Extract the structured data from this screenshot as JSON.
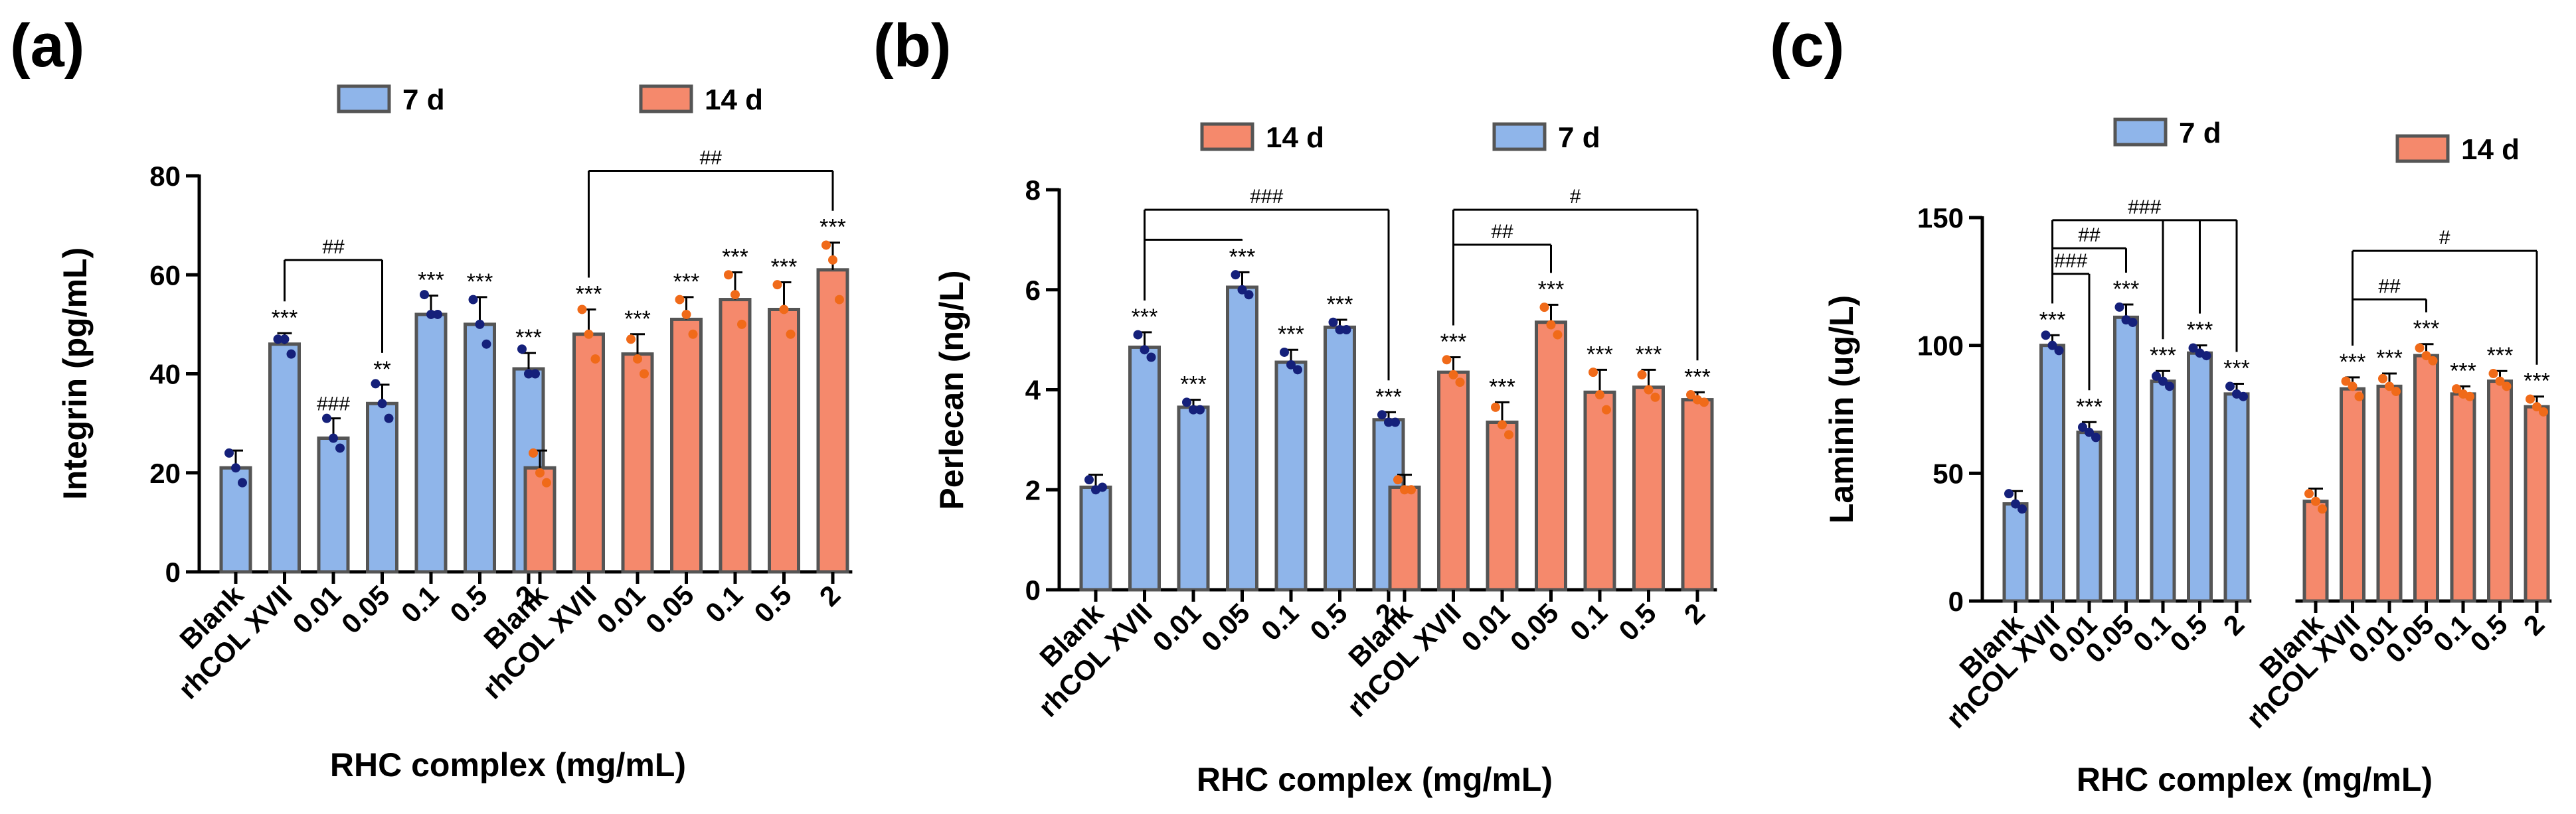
{
  "colors": {
    "d7": "#8fb5ea",
    "d14": "#f5896c",
    "dot7": "#15207a",
    "dot14": "#f06a19",
    "border": "#555555"
  },
  "chart_data": [
    {
      "type": "bar",
      "panel": "(a)",
      "ylabel": "Integrin (pg/mL)",
      "xlabel": "RHC complex (mg/mL)",
      "ylim": [
        0,
        80
      ],
      "yticks": [
        0,
        20,
        40,
        60,
        80
      ],
      "categories": [
        "Blank",
        "rhCOL XVII",
        "0.01",
        "0.05",
        "0.1",
        "0.5",
        "2"
      ],
      "legend": [
        "7 d",
        "14 d"
      ],
      "legend_order": [
        "d7",
        "d14"
      ],
      "series": [
        {
          "name": "7 d",
          "color_key": "d7",
          "values": [
            21,
            46,
            27,
            34,
            52,
            50,
            41
          ],
          "err": [
            3.5,
            2.2,
            4,
            3.8,
            3.8,
            5.5,
            3.2
          ],
          "points": [
            [
              24,
              21,
              18
            ],
            [
              47,
              47,
              44
            ],
            [
              31,
              27,
              25
            ],
            [
              38,
              34,
              31
            ],
            [
              56,
              52,
              52
            ],
            [
              55,
              50,
              46
            ],
            [
              45,
              40,
              40
            ]
          ],
          "sig": [
            "",
            "***",
            "###",
            "**",
            "***",
            "***",
            "***"
          ]
        },
        {
          "name": "14 d",
          "color_key": "d14",
          "values": [
            21,
            48,
            44,
            51,
            55,
            53,
            61
          ],
          "err": [
            3.5,
            5,
            4,
            4.5,
            5.5,
            5.5,
            5.5
          ],
          "points": [
            [
              24,
              20,
              18
            ],
            [
              53,
              48,
              43
            ],
            [
              47,
              43,
              40
            ],
            [
              55,
              52,
              48
            ],
            [
              60,
              56,
              50
            ],
            [
              58,
              53,
              48
            ],
            [
              66,
              63,
              55
            ]
          ],
          "sig": [
            "",
            "***",
            "***",
            "***",
            "***",
            "***",
            "***"
          ]
        }
      ],
      "brackets": [
        {
          "series": 0,
          "from": 1,
          "to": [
            3
          ],
          "y": 63,
          "label": "##"
        },
        {
          "series": 1,
          "from": 1,
          "to": [
            6
          ],
          "y": 81,
          "label": "##"
        }
      ]
    },
    {
      "type": "bar",
      "panel": "(b)",
      "ylabel": "Perlecan (ng/L)",
      "xlabel": "RHC complex (mg/mL)",
      "ylim": [
        0,
        8
      ],
      "yticks": [
        0,
        2,
        4,
        6,
        8
      ],
      "categories": [
        "Blank",
        "rhCOL XVII",
        "0.01",
        "0.05",
        "0.1",
        "0.5",
        "2"
      ],
      "legend": [
        "14 d",
        "7 d"
      ],
      "legend_order": [
        "d14",
        "d7"
      ],
      "series": [
        {
          "name": "7 d",
          "color_key": "d7",
          "values": [
            2.05,
            4.85,
            3.65,
            6.05,
            4.55,
            5.25,
            3.4
          ],
          "err": [
            0.25,
            0.3,
            0.15,
            0.3,
            0.25,
            0.15,
            0.15
          ],
          "points": [
            [
              2.2,
              2.0,
              2.05
            ],
            [
              5.1,
              4.8,
              4.65
            ],
            [
              3.75,
              3.6,
              3.6
            ],
            [
              6.3,
              6.0,
              5.9
            ],
            [
              4.75,
              4.5,
              4.4
            ],
            [
              5.35,
              5.2,
              5.2
            ],
            [
              3.5,
              3.35,
              3.35
            ]
          ],
          "sig": [
            "",
            "***",
            "***",
            "***",
            "***",
            "***",
            "***"
          ]
        },
        {
          "name": "14 d",
          "color_key": "d14",
          "values": [
            2.05,
            4.35,
            3.35,
            5.35,
            3.95,
            4.05,
            3.8
          ],
          "err": [
            0.25,
            0.3,
            0.4,
            0.35,
            0.45,
            0.35,
            0.15
          ],
          "points": [
            [
              2.2,
              2.0,
              2.0
            ],
            [
              4.6,
              4.3,
              4.15
            ],
            [
              3.65,
              3.3,
              3.1
            ],
            [
              5.65,
              5.3,
              5.1
            ],
            [
              4.35,
              3.9,
              3.6
            ],
            [
              4.3,
              4.0,
              3.85
            ],
            [
              3.9,
              3.8,
              3.75
            ]
          ],
          "sig": [
            "",
            "***",
            "***",
            "***",
            "***",
            "***",
            "***"
          ]
        }
      ],
      "brackets": [
        {
          "series": 0,
          "from": 1,
          "to": [
            3
          ],
          "y": 7.0,
          "label": ""
        },
        {
          "series": 0,
          "from": 1,
          "to": [
            6
          ],
          "y": 7.6,
          "label": "###"
        },
        {
          "series": 1,
          "from": 1,
          "to": [
            3
          ],
          "y": 6.9,
          "label": "##"
        },
        {
          "series": 1,
          "from": 1,
          "to": [
            6
          ],
          "y": 7.6,
          "label": "#"
        }
      ]
    },
    {
      "type": "bar",
      "panel": "(c)",
      "ylabel": "Laminin (ug/L)",
      "xlabel": "RHC complex (mg/mL)",
      "ylim": [
        0,
        150
      ],
      "yticks": [
        0,
        50,
        100,
        150
      ],
      "categories": [
        "Blank",
        "rhCOL XVII",
        "0.01",
        "0.05",
        "0.1",
        "0.5",
        "2"
      ],
      "legend": [
        "7 d",
        "14 d"
      ],
      "legend_order": [
        "d7",
        "d14"
      ],
      "series": [
        {
          "name": "7 d",
          "color_key": "d7",
          "values": [
            38,
            100,
            66,
            111,
            86,
            97,
            81
          ],
          "err": [
            5,
            4,
            4,
            5,
            4,
            3,
            4
          ],
          "points": [
            [
              42,
              38,
              36
            ],
            [
              104,
              100,
              98
            ],
            [
              68,
              66,
              64
            ],
            [
              115,
              110,
              109
            ],
            [
              88,
              86,
              84
            ],
            [
              99,
              97,
              96
            ],
            [
              84,
              81,
              80
            ]
          ],
          "sig": [
            "",
            "***",
            "***",
            "***",
            "***",
            "***",
            "***"
          ]
        },
        {
          "name": "14 d",
          "color_key": "d14",
          "values": [
            39,
            83,
            84,
            96,
            81,
            86,
            76
          ],
          "err": [
            5,
            4.5,
            5,
            4.5,
            3,
            4,
            4
          ],
          "points": [
            [
              42,
              39,
              36
            ],
            [
              86,
              84,
              80
            ],
            [
              87,
              84,
              82
            ],
            [
              99,
              96,
              94
            ],
            [
              83,
              81,
              80
            ],
            [
              89,
              86,
              84
            ],
            [
              79,
              76,
              74
            ]
          ],
          "sig": [
            "",
            "***",
            "***",
            "***",
            "***",
            "***",
            "***"
          ]
        }
      ],
      "brackets": [
        {
          "series": 0,
          "from": 1,
          "to": [
            2
          ],
          "y": 128,
          "label": "###"
        },
        {
          "series": 0,
          "from": 1,
          "to": [
            3
          ],
          "y": 138,
          "label": "##"
        },
        {
          "series": 0,
          "from": 1,
          "to": [
            4,
            5,
            6
          ],
          "y": 149,
          "label": "###"
        },
        {
          "series": 1,
          "from": 1,
          "to": [
            3
          ],
          "y": 118,
          "label": "##"
        },
        {
          "series": 1,
          "from": 1,
          "to": [
            6
          ],
          "y": 137,
          "label": "#"
        }
      ]
    }
  ]
}
